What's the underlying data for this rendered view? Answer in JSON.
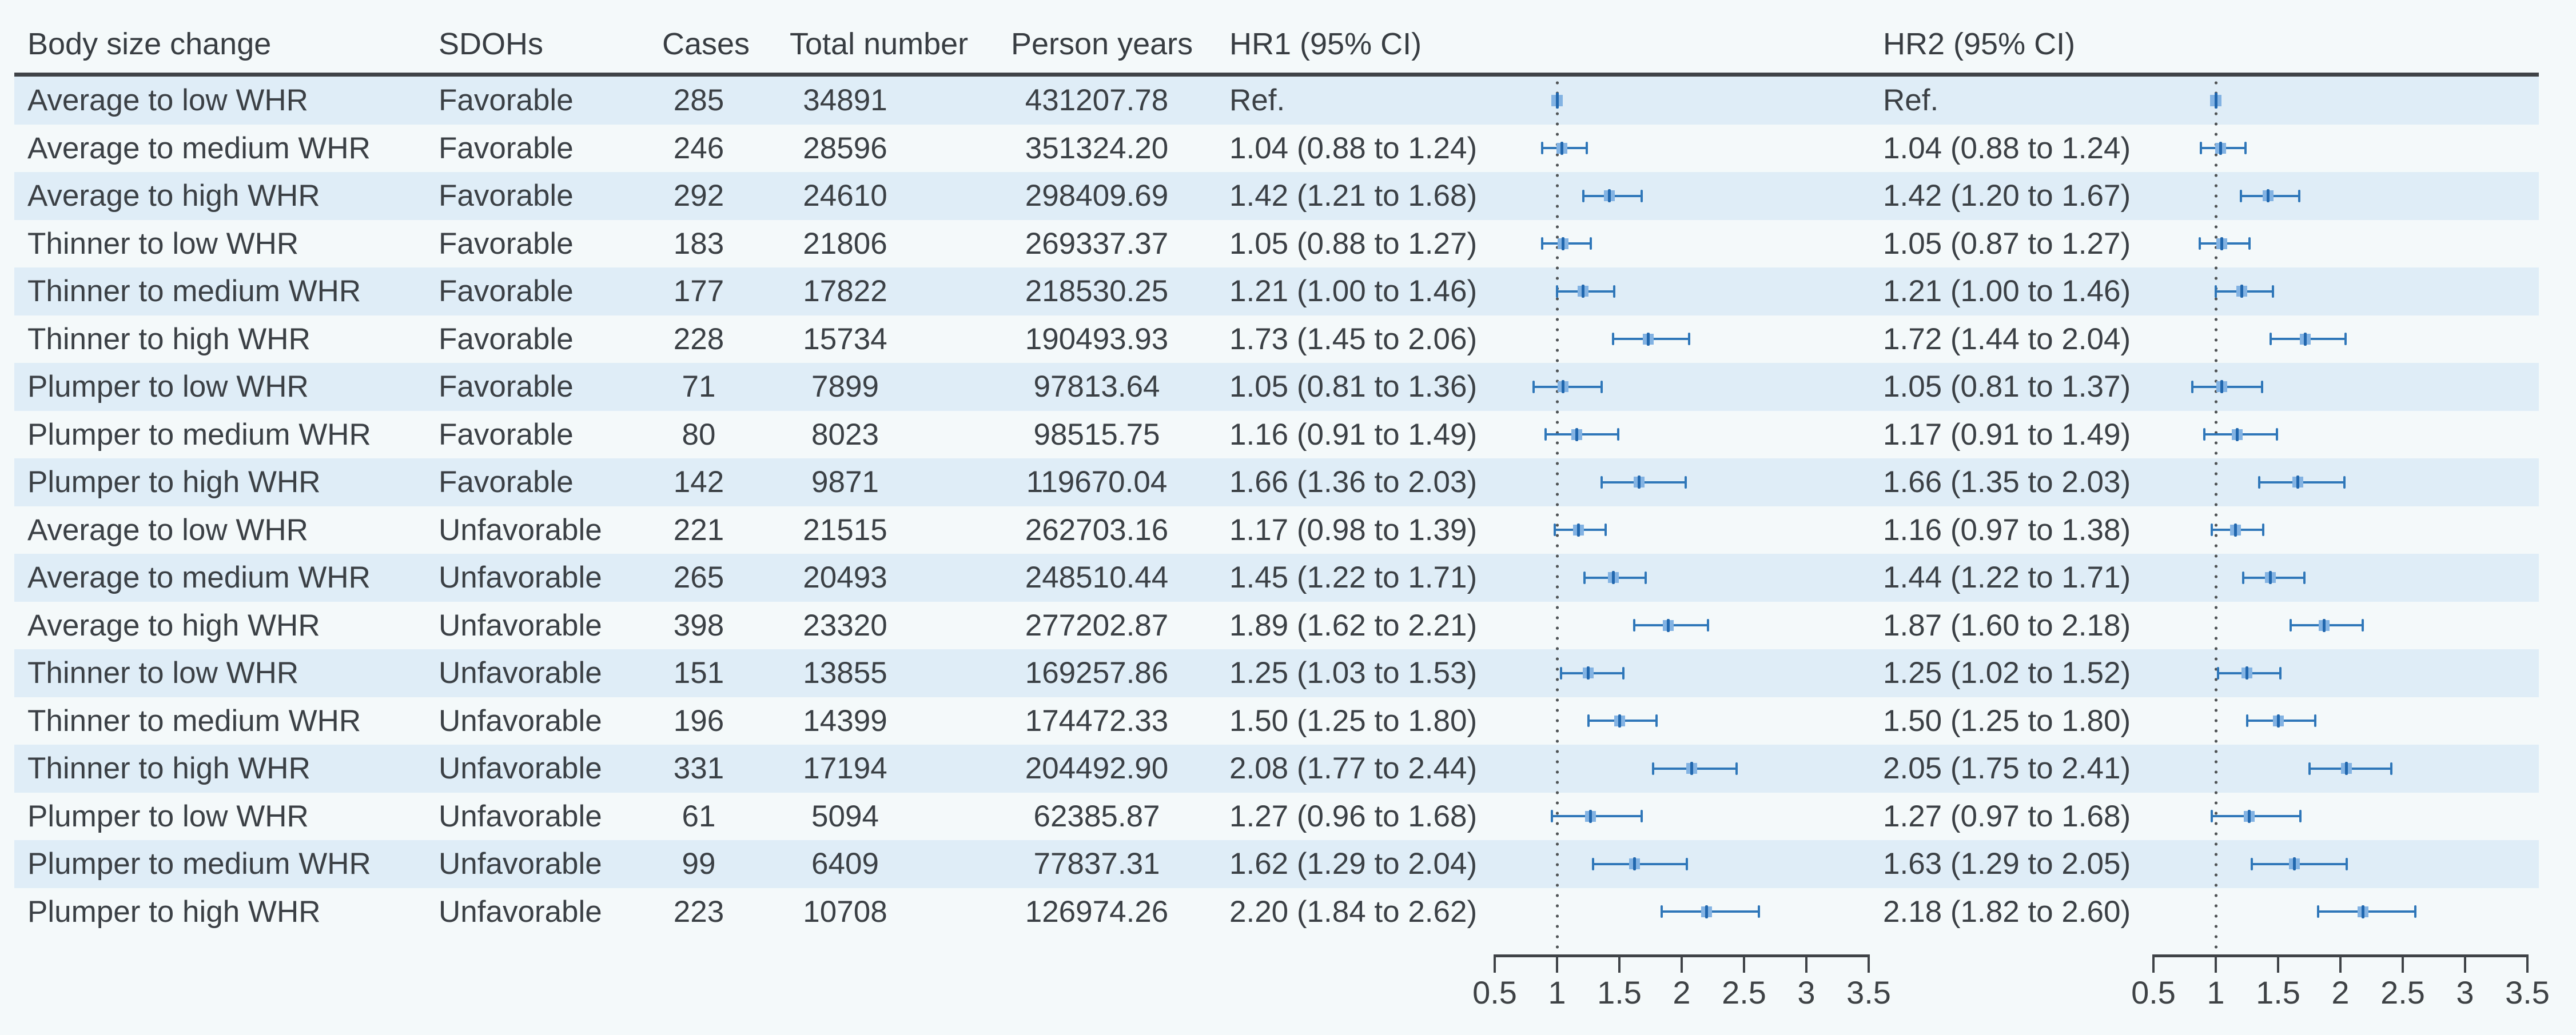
{
  "table": {
    "headers": {
      "body_size_change": "Body size change",
      "sdohs": "SDOHs",
      "cases": "Cases",
      "total_number": "Total number",
      "person_years": "Person years",
      "hr1": "HR1 (95% CI)",
      "hr2": "HR2 (95% CI)"
    },
    "rows": [
      {
        "body_size_change": "Average to low WHR",
        "sdohs": "Favorable",
        "cases": "285",
        "total_number": "34891",
        "person_years": "431207.78",
        "hr1": "Ref.",
        "hr2": "Ref."
      },
      {
        "body_size_change": "Average to medium WHR",
        "sdohs": "Favorable",
        "cases": "246",
        "total_number": "28596",
        "person_years": "351324.20",
        "hr1": "1.04 (0.88 to 1.24)",
        "hr2": "1.04 (0.88 to 1.24)"
      },
      {
        "body_size_change": "Average to high WHR",
        "sdohs": "Favorable",
        "cases": "292",
        "total_number": "24610",
        "person_years": "298409.69",
        "hr1": "1.42 (1.21 to 1.68)",
        "hr2": "1.42 (1.20 to 1.67)"
      },
      {
        "body_size_change": "Thinner to low WHR",
        "sdohs": "Favorable",
        "cases": "183",
        "total_number": "21806",
        "person_years": "269337.37",
        "hr1": "1.05 (0.88 to 1.27)",
        "hr2": "1.05 (0.87 to 1.27)"
      },
      {
        "body_size_change": "Thinner to medium WHR",
        "sdohs": "Favorable",
        "cases": "177",
        "total_number": "17822",
        "person_years": "218530.25",
        "hr1": "1.21 (1.00 to 1.46)",
        "hr2": "1.21 (1.00 to 1.46)"
      },
      {
        "body_size_change": "Thinner to high WHR",
        "sdohs": "Favorable",
        "cases": "228",
        "total_number": "15734",
        "person_years": "190493.93",
        "hr1": "1.73 (1.45 to 2.06)",
        "hr2": "1.72 (1.44 to 2.04)"
      },
      {
        "body_size_change": "Plumper to low WHR",
        "sdohs": "Favorable",
        "cases": "71",
        "total_number": "7899",
        "person_years": "97813.64",
        "hr1": "1.05 (0.81 to 1.36)",
        "hr2": "1.05 (0.81 to 1.37)"
      },
      {
        "body_size_change": "Plumper to medium WHR",
        "sdohs": "Favorable",
        "cases": "80",
        "total_number": "8023",
        "person_years": "98515.75",
        "hr1": "1.16 (0.91 to 1.49)",
        "hr2": "1.17 (0.91 to 1.49)"
      },
      {
        "body_size_change": "Plumper to high WHR",
        "sdohs": "Favorable",
        "cases": "142",
        "total_number": "9871",
        "person_years": "119670.04",
        "hr1": "1.66 (1.36 to 2.03)",
        "hr2": "1.66 (1.35 to 2.03)"
      },
      {
        "body_size_change": "Average to low WHR",
        "sdohs": "Unfavorable",
        "cases": "221",
        "total_number": "21515",
        "person_years": "262703.16",
        "hr1": "1.17 (0.98 to 1.39)",
        "hr2": "1.16 (0.97 to 1.38)"
      },
      {
        "body_size_change": "Average to medium WHR",
        "sdohs": "Unfavorable",
        "cases": "265",
        "total_number": "20493",
        "person_years": "248510.44",
        "hr1": "1.45 (1.22 to 1.71)",
        "hr2": "1.44 (1.22 to 1.71)"
      },
      {
        "body_size_change": "Average to high WHR",
        "sdohs": "Unfavorable",
        "cases": "398",
        "total_number": "23320",
        "person_years": "277202.87",
        "hr1": "1.89 (1.62 to 2.21)",
        "hr2": "1.87 (1.60 to 2.18)"
      },
      {
        "body_size_change": "Thinner to low WHR",
        "sdohs": "Unfavorable",
        "cases": "151",
        "total_number": "13855",
        "person_years": "169257.86",
        "hr1": "1.25 (1.03 to 1.53)",
        "hr2": "1.25 (1.02 to 1.52)"
      },
      {
        "body_size_change": "Thinner to medium WHR",
        "sdohs": "Unfavorable",
        "cases": "196",
        "total_number": "14399",
        "person_years": "174472.33",
        "hr1": "1.50 (1.25 to 1.80)",
        "hr2": "1.50 (1.25 to 1.80)"
      },
      {
        "body_size_change": "Thinner to high WHR",
        "sdohs": "Unfavorable",
        "cases": "331",
        "total_number": "17194",
        "person_years": "204492.90",
        "hr1": "2.08 (1.77 to 2.44)",
        "hr2": "2.05 (1.75 to 2.41)"
      },
      {
        "body_size_change": "Plumper to low WHR",
        "sdohs": "Unfavorable",
        "cases": "61",
        "total_number": "5094",
        "person_years": "62385.87",
        "hr1": "1.27 (0.96 to 1.68)",
        "hr2": "1.27 (0.97 to 1.68)"
      },
      {
        "body_size_change": "Plumper to medium WHR",
        "sdohs": "Unfavorable",
        "cases": "99",
        "total_number": "6409",
        "person_years": "77837.31",
        "hr1": "1.62 (1.29 to 2.04)",
        "hr2": "1.63 (1.29 to 2.05)"
      },
      {
        "body_size_change": "Plumper to high WHR",
        "sdohs": "Unfavorable",
        "cases": "223",
        "total_number": "10708",
        "person_years": "126974.26",
        "hr1": "2.20 (1.84 to 2.62)",
        "hr2": "2.18 (1.82 to 2.60)"
      }
    ]
  },
  "chart_data": {
    "type": "forest",
    "axis": {
      "tick_labels": [
        "0.5",
        "1",
        "1.5",
        "2",
        "2.5",
        "3",
        "3.5"
      ],
      "tick_values": [
        0.5,
        1,
        1.5,
        2,
        2.5,
        3,
        3.5
      ],
      "xlim": [
        0.5,
        3.5
      ],
      "ref_line": 1
    },
    "panels": [
      {
        "label": "HR1 (95% CI)",
        "estimates": [
          {
            "ref": true
          },
          {
            "mid": 1.04,
            "lo": 0.88,
            "hi": 1.24
          },
          {
            "mid": 1.42,
            "lo": 1.21,
            "hi": 1.68
          },
          {
            "mid": 1.05,
            "lo": 0.88,
            "hi": 1.27
          },
          {
            "mid": 1.21,
            "lo": 1.0,
            "hi": 1.46
          },
          {
            "mid": 1.73,
            "lo": 1.45,
            "hi": 2.06
          },
          {
            "mid": 1.05,
            "lo": 0.81,
            "hi": 1.36
          },
          {
            "mid": 1.16,
            "lo": 0.91,
            "hi": 1.49
          },
          {
            "mid": 1.66,
            "lo": 1.36,
            "hi": 2.03
          },
          {
            "mid": 1.17,
            "lo": 0.98,
            "hi": 1.39
          },
          {
            "mid": 1.45,
            "lo": 1.22,
            "hi": 1.71
          },
          {
            "mid": 1.89,
            "lo": 1.62,
            "hi": 2.21
          },
          {
            "mid": 1.25,
            "lo": 1.03,
            "hi": 1.53
          },
          {
            "mid": 1.5,
            "lo": 1.25,
            "hi": 1.8
          },
          {
            "mid": 2.08,
            "lo": 1.77,
            "hi": 2.44
          },
          {
            "mid": 1.27,
            "lo": 0.96,
            "hi": 1.68
          },
          {
            "mid": 1.62,
            "lo": 1.29,
            "hi": 2.04
          },
          {
            "mid": 2.2,
            "lo": 1.84,
            "hi": 2.62
          }
        ]
      },
      {
        "label": "HR2 (95% CI)",
        "estimates": [
          {
            "ref": true
          },
          {
            "mid": 1.04,
            "lo": 0.88,
            "hi": 1.24
          },
          {
            "mid": 1.42,
            "lo": 1.2,
            "hi": 1.67
          },
          {
            "mid": 1.05,
            "lo": 0.87,
            "hi": 1.27
          },
          {
            "mid": 1.21,
            "lo": 1.0,
            "hi": 1.46
          },
          {
            "mid": 1.72,
            "lo": 1.44,
            "hi": 2.04
          },
          {
            "mid": 1.05,
            "lo": 0.81,
            "hi": 1.37
          },
          {
            "mid": 1.17,
            "lo": 0.91,
            "hi": 1.49
          },
          {
            "mid": 1.66,
            "lo": 1.35,
            "hi": 2.03
          },
          {
            "mid": 1.16,
            "lo": 0.97,
            "hi": 1.38
          },
          {
            "mid": 1.44,
            "lo": 1.22,
            "hi": 1.71
          },
          {
            "mid": 1.87,
            "lo": 1.6,
            "hi": 2.18
          },
          {
            "mid": 1.25,
            "lo": 1.02,
            "hi": 1.52
          },
          {
            "mid": 1.5,
            "lo": 1.25,
            "hi": 1.8
          },
          {
            "mid": 2.05,
            "lo": 1.75,
            "hi": 2.41
          },
          {
            "mid": 1.27,
            "lo": 0.97,
            "hi": 1.68
          },
          {
            "mid": 1.63,
            "lo": 1.29,
            "hi": 2.05
          },
          {
            "mid": 2.18,
            "lo": 1.82,
            "hi": 2.6
          }
        ]
      }
    ]
  },
  "colors": {
    "background": "#f4f9fa",
    "row_stripe": "#dfedf7",
    "text": "#3b4045",
    "header_rule": "#3f4347",
    "axis": "#3f4347",
    "ref_dotted_line": "#505456",
    "error_bar": "#2f77b9",
    "marker_fill": "#83b3e3",
    "marker_center": "#2167ae"
  }
}
